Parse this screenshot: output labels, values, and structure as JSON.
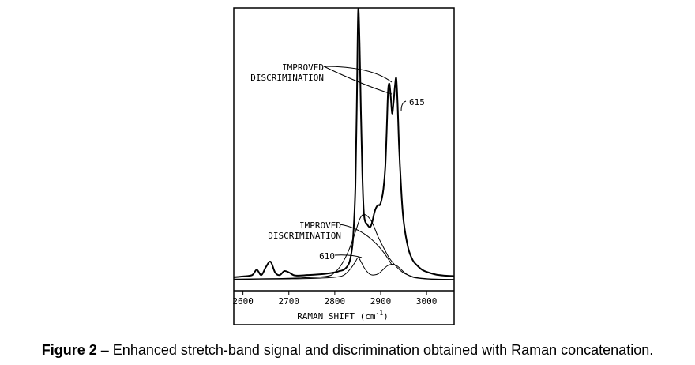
{
  "caption": {
    "label": "Figure 2",
    "separator": " – ",
    "text": "Enhanced stretch-band signal and discrimination obtained with Raman concatenation."
  },
  "chart_data": {
    "type": "line",
    "title": "",
    "xlabel": "RAMAN SHIFT (cm",
    "xlabel_sup": "-1",
    "xlabel_close": ")",
    "ylabel": "",
    "xlim": [
      2580,
      3060
    ],
    "ylim": [
      0,
      1.0
    ],
    "x_ticks": [
      2600,
      2700,
      2800,
      2900,
      3000
    ],
    "grid": false,
    "legend": "none",
    "series": [
      {
        "name": "615",
        "style": "thick",
        "x": [
          2580,
          2600,
          2620,
          2630,
          2640,
          2650,
          2660,
          2670,
          2680,
          2690,
          2700,
          2710,
          2720,
          2740,
          2760,
          2780,
          2800,
          2810,
          2820,
          2830,
          2835,
          2840,
          2845,
          2848,
          2851,
          2854,
          2857,
          2860,
          2863,
          2866,
          2870,
          2874,
          2878,
          2882,
          2886,
          2890,
          2894,
          2898,
          2902,
          2906,
          2910,
          2913,
          2916,
          2919,
          2922,
          2925,
          2928,
          2931,
          2934,
          2937,
          2940,
          2945,
          2950,
          2960,
          2970,
          2980,
          2990,
          3000,
          3020,
          3040,
          3060
        ],
        "y": [
          0.012,
          0.015,
          0.02,
          0.04,
          0.02,
          0.05,
          0.07,
          0.03,
          0.02,
          0.035,
          0.03,
          0.02,
          0.018,
          0.02,
          0.022,
          0.025,
          0.03,
          0.035,
          0.04,
          0.06,
          0.09,
          0.16,
          0.35,
          0.65,
          1.0,
          0.88,
          0.62,
          0.4,
          0.26,
          0.22,
          0.21,
          0.2,
          0.2,
          0.22,
          0.25,
          0.27,
          0.28,
          0.28,
          0.3,
          0.34,
          0.42,
          0.55,
          0.7,
          0.73,
          0.68,
          0.62,
          0.66,
          0.72,
          0.75,
          0.65,
          0.5,
          0.33,
          0.22,
          0.12,
          0.075,
          0.055,
          0.04,
          0.032,
          0.022,
          0.018,
          0.016
        ]
      },
      {
        "name": "610",
        "style": "thin",
        "x": [
          2580,
          2600,
          2640,
          2700,
          2760,
          2800,
          2820,
          2835,
          2845,
          2851,
          2857,
          2865,
          2875,
          2885,
          2895,
          2905,
          2915,
          2925,
          2935,
          2945,
          2955,
          2970,
          2990,
          3020,
          3060
        ],
        "y": [
          0.003,
          0.004,
          0.005,
          0.006,
          0.008,
          0.012,
          0.02,
          0.045,
          0.07,
          0.085,
          0.07,
          0.045,
          0.025,
          0.02,
          0.025,
          0.04,
          0.055,
          0.06,
          0.055,
          0.04,
          0.025,
          0.012,
          0.007,
          0.004,
          0.003
        ]
      },
      {
        "name": "",
        "style": "thin",
        "x": [
          2580,
          2700,
          2780,
          2800,
          2815,
          2830,
          2845,
          2855,
          2865,
          2880,
          2895,
          2910,
          2920,
          2935,
          2950,
          2970,
          2990,
          3020,
          3060
        ],
        "y": [
          0.005,
          0.008,
          0.015,
          0.03,
          0.06,
          0.11,
          0.18,
          0.23,
          0.245,
          0.22,
          0.16,
          0.11,
          0.08,
          0.05,
          0.028,
          0.014,
          0.008,
          0.005,
          0.004
        ]
      }
    ],
    "annotations": [
      {
        "id": "ann-top",
        "text": [
          "IMPROVED",
          "DISCRIMINATION"
        ]
      },
      {
        "id": "ann-615",
        "text": [
          "615"
        ]
      },
      {
        "id": "ann-bottom",
        "text": [
          "IMPROVED",
          "DISCRIMINATION"
        ]
      },
      {
        "id": "ann-610",
        "text": [
          "610"
        ]
      }
    ]
  }
}
